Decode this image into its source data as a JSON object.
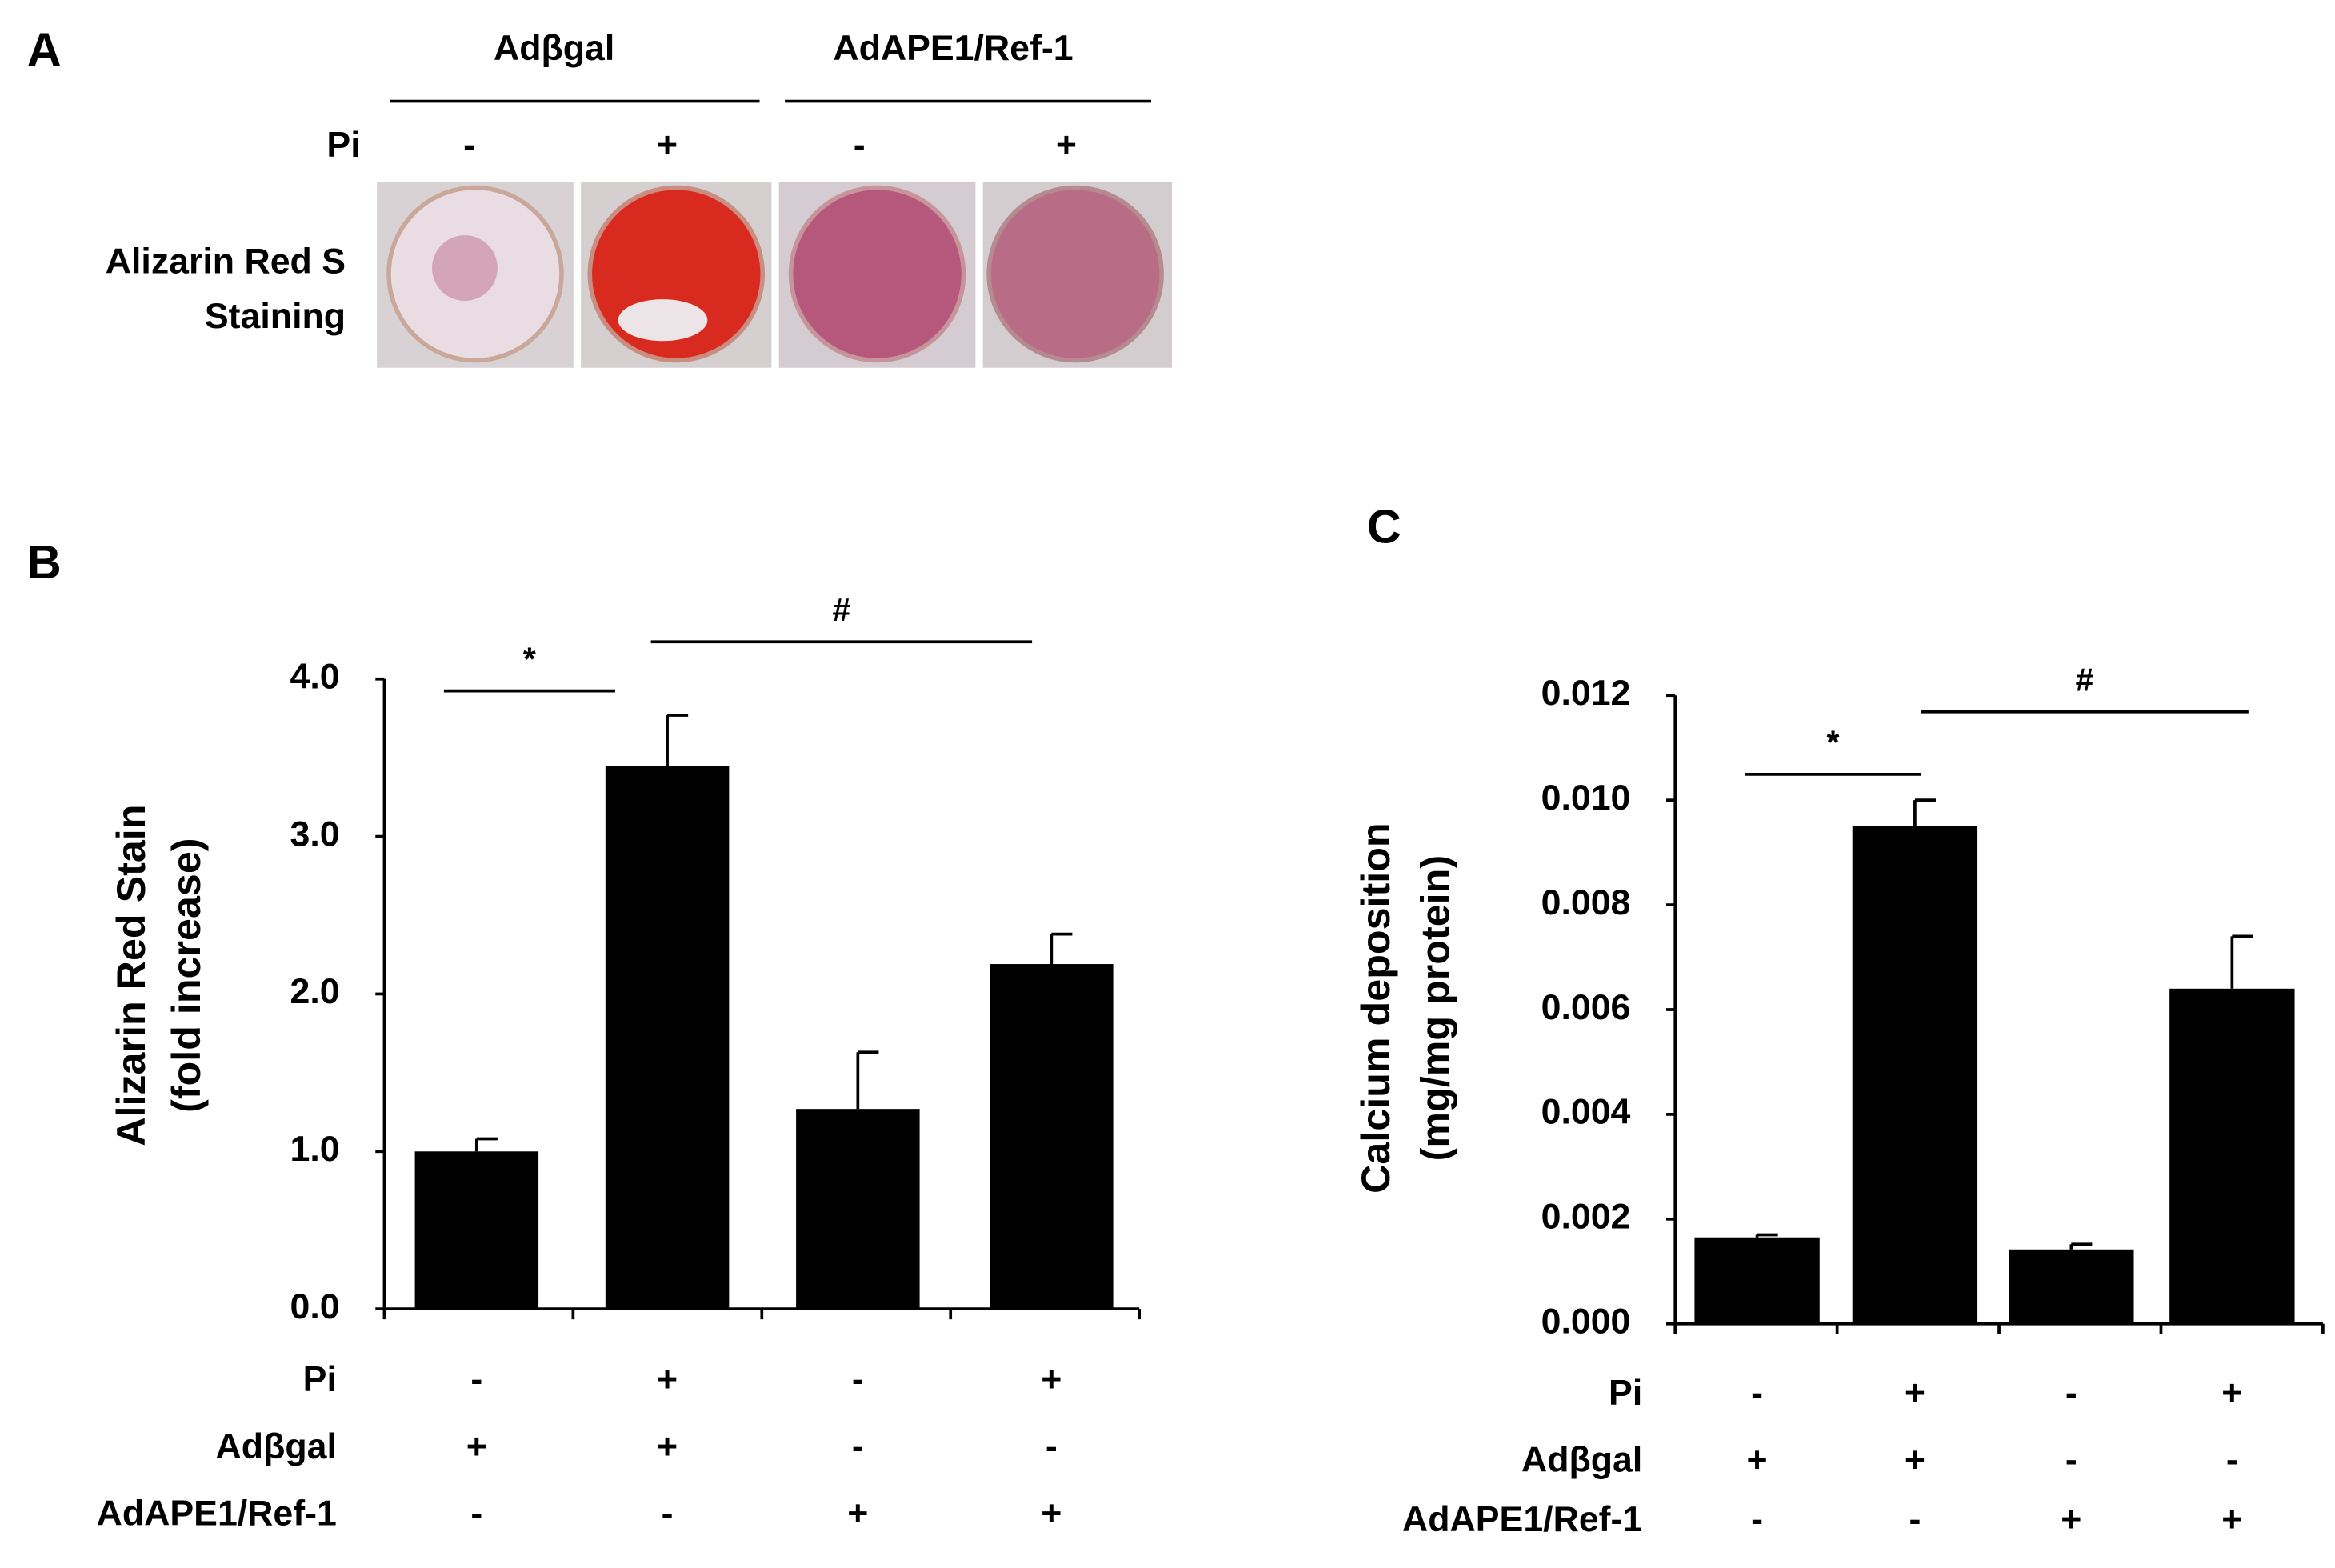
{
  "panel_a": {
    "label": "A",
    "groups": [
      "Adβgal",
      "AdAPE1/Ref-1"
    ],
    "row_label": "Pi",
    "signs": [
      "-",
      "+",
      "-",
      "+"
    ],
    "image_label": [
      "Alizarin Red S",
      "Staining"
    ]
  },
  "chart_data": [
    {
      "type": "bar",
      "panel_label": "B",
      "ylabel": [
        "Alizarin Red Stain",
        "(fold increase)"
      ],
      "values": [
        1.0,
        3.45,
        1.27,
        2.19
      ],
      "errors": [
        0.08,
        0.32,
        0.36,
        0.19
      ],
      "color": "#000000",
      "ylim": [
        0,
        4
      ],
      "yticks": [
        {
          "value": 0,
          "label": "0.0"
        },
        {
          "value": 1,
          "label": "1.0"
        },
        {
          "value": 2,
          "label": "2.0"
        },
        {
          "value": 3,
          "label": "3.0"
        },
        {
          "value": 4,
          "label": "4.0"
        }
      ],
      "annotations": [
        "*",
        "#"
      ],
      "condition_rows": [
        {
          "label": "Pi",
          "marks": [
            "-",
            "+",
            "-",
            "+"
          ]
        },
        {
          "label": "Adβgal",
          "marks": [
            "+",
            "+",
            "-",
            "-"
          ]
        },
        {
          "label": "AdAPE1/Ref-1",
          "marks": [
            "-",
            "-",
            "+",
            "+"
          ]
        }
      ]
    },
    {
      "type": "bar",
      "panel_label": "C",
      "ylabel": [
        "Calcium deposition",
        "(mg/mg protein)"
      ],
      "values": [
        0.00165,
        0.0095,
        0.00142,
        0.0064
      ],
      "errors": [
        5e-05,
        0.0005,
        0.0001,
        0.001
      ],
      "color": "#000000",
      "ylim": [
        0,
        0.012
      ],
      "yticks": [
        {
          "value": 0,
          "label": "0.000"
        },
        {
          "value": 0.002,
          "label": "0.002"
        },
        {
          "value": 0.004,
          "label": "0.004"
        },
        {
          "value": 0.006,
          "label": "0.006"
        },
        {
          "value": 0.008,
          "label": "0.008"
        },
        {
          "value": 0.01,
          "label": "0.010"
        },
        {
          "value": 0.012,
          "label": "0.012"
        }
      ],
      "annotations": [
        "*",
        "#"
      ],
      "condition_rows": [
        {
          "label": "Pi",
          "marks": [
            "-",
            "+",
            "-",
            "+"
          ]
        },
        {
          "label": "Adβgal",
          "marks": [
            "+",
            "+",
            "-",
            "-"
          ]
        },
        {
          "label": "AdAPE1/Ref-1",
          "marks": [
            "-",
            "-",
            "+",
            "+"
          ]
        }
      ]
    }
  ]
}
